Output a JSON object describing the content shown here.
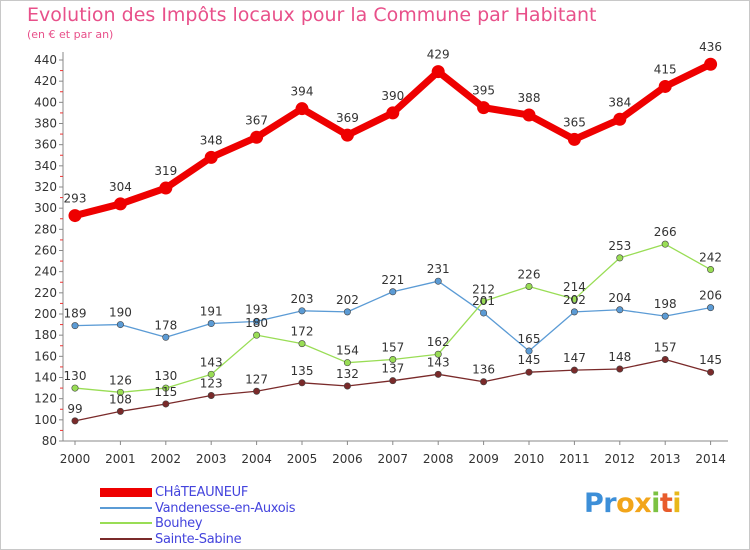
{
  "header": {
    "title": "Evolution des Impôts locaux pour la Commune par Habitant",
    "subtitle": "(en € et par an)"
  },
  "chart_data": {
    "type": "line",
    "title": "Evolution des Impôts locaux pour la Commune par Habitant",
    "subtitle": "(en € et par an)",
    "xlabel": "",
    "ylabel": "",
    "x": [
      "2000",
      "2001",
      "2002",
      "2003",
      "2004",
      "2005",
      "2006",
      "2007",
      "2008",
      "2009",
      "2010",
      "2011",
      "2012",
      "2013",
      "2014"
    ],
    "ylim": [
      80,
      440
    ],
    "yticks": [
      80,
      100,
      120,
      140,
      160,
      180,
      200,
      220,
      240,
      260,
      280,
      300,
      320,
      340,
      360,
      380,
      400,
      420,
      440
    ],
    "grid": false,
    "legend_position": "bottom-left",
    "series": [
      {
        "name": "CHâTEAUNEUF",
        "color": "#ee0000",
        "values": [
          293,
          304,
          319,
          348,
          367,
          394,
          369,
          390,
          429,
          395,
          388,
          365,
          384,
          415,
          436
        ]
      },
      {
        "name": "Vandenesse-en-Auxois",
        "color": "#5b9bd5",
        "values": [
          189,
          190,
          178,
          191,
          193,
          203,
          202,
          221,
          231,
          201,
          165,
          202,
          204,
          198,
          206
        ]
      },
      {
        "name": "Bouhey",
        "color": "#99dd55",
        "values": [
          130,
          126,
          130,
          143,
          180,
          172,
          154,
          157,
          162,
          212,
          226,
          214,
          253,
          266,
          242
        ]
      },
      {
        "name": "Sainte-Sabine",
        "color": "#7a2a2a",
        "values": [
          99,
          108,
          115,
          123,
          127,
          135,
          132,
          137,
          143,
          136,
          145,
          147,
          148,
          157,
          145
        ]
      }
    ]
  },
  "legend": {
    "items": [
      {
        "label": "CHâTEAUNEUF",
        "color": "#ee0000"
      },
      {
        "label": "Vandenesse-en-Auxois",
        "color": "#5b9bd5"
      },
      {
        "label": "Bouhey",
        "color": "#99dd55"
      },
      {
        "label": "Sainte-Sabine",
        "color": "#7a2a2a"
      }
    ]
  },
  "logo": {
    "letters": [
      "P",
      "r",
      "o",
      "x",
      "i",
      "t",
      "i"
    ],
    "colors": [
      "#3d8fd8",
      "#3d8fd8",
      "#f2a51a",
      "#f2a51a",
      "#7cc242",
      "#e85c2c",
      "#e8b81a"
    ]
  }
}
